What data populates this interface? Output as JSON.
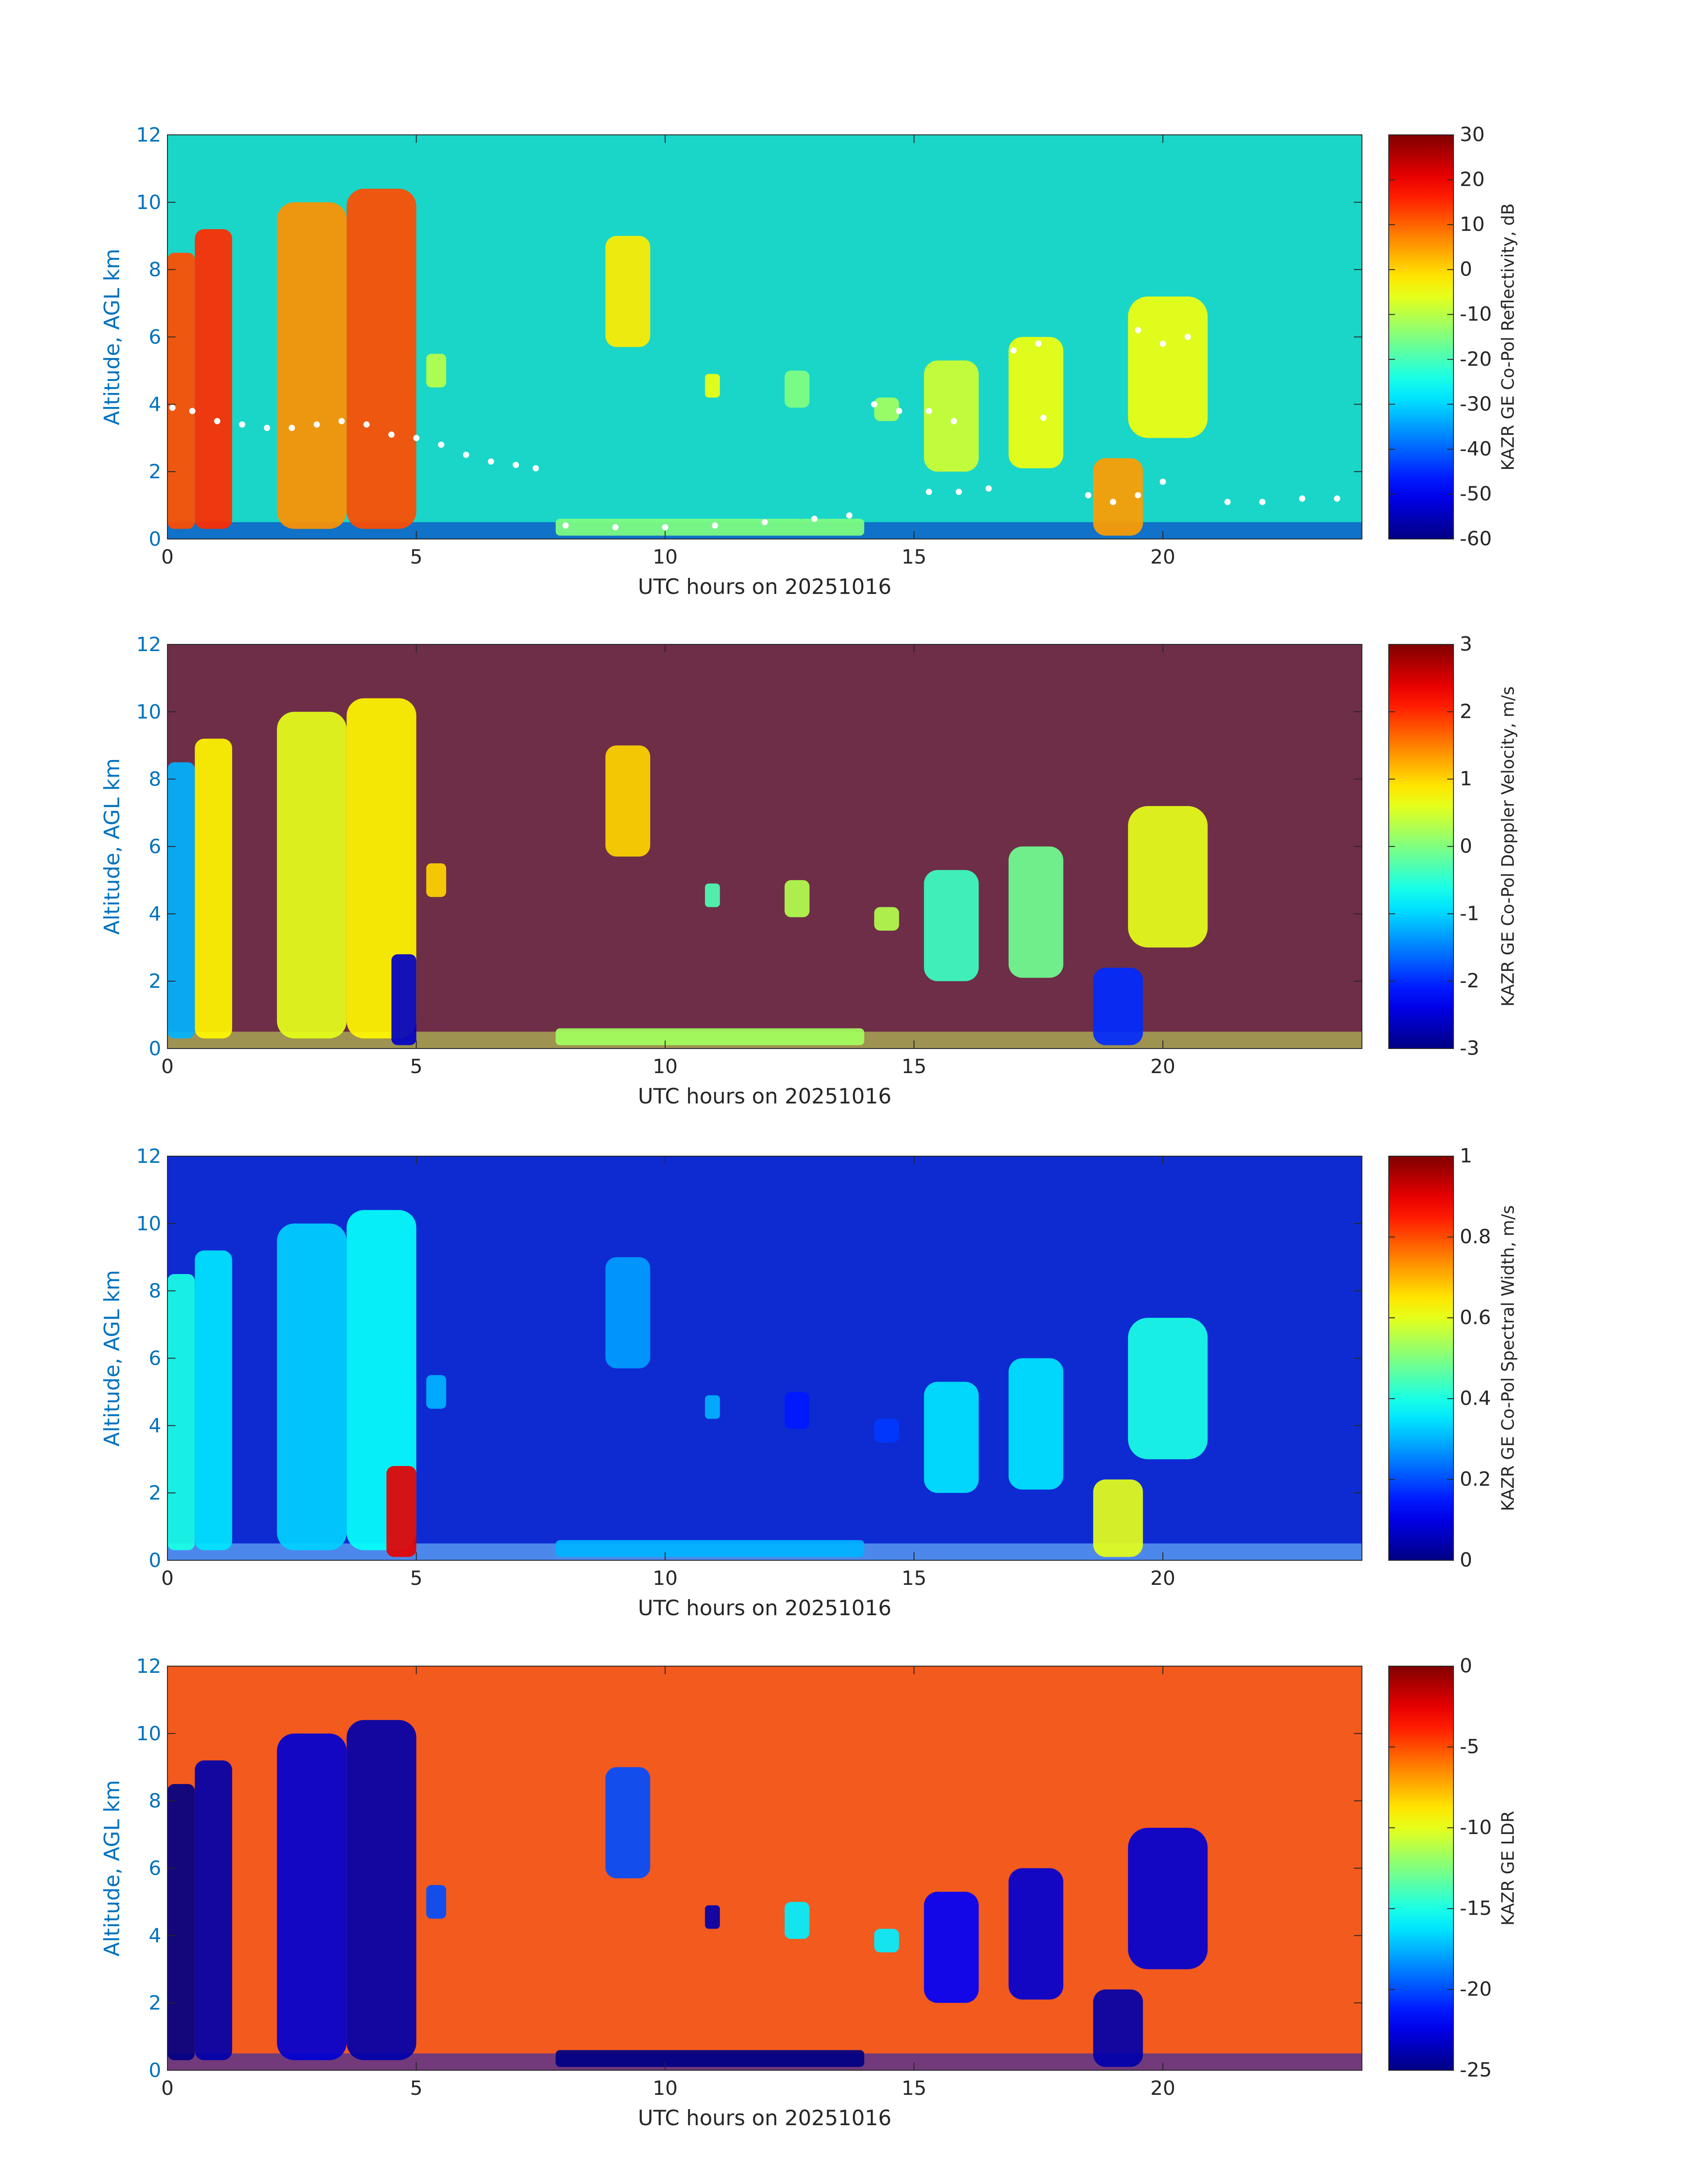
{
  "chart_data": [
    {
      "type": "heatmap",
      "title": "",
      "xlabel": "UTC hours on 20251016",
      "ylabel": "Altitude, AGL km",
      "xlim": [
        0,
        24
      ],
      "ylim": [
        0,
        12
      ],
      "xticks": [
        0,
        5,
        10,
        15,
        20
      ],
      "yticks": [
        0,
        2,
        4,
        6,
        8,
        10,
        12
      ],
      "colormap": "jet",
      "colorbar": {
        "label": "KAZR GE Co-Pol Reflectivity, dB",
        "range": [
          -60,
          30
        ],
        "ticks": [
          30,
          20,
          10,
          0,
          -10,
          -20,
          -30,
          -40,
          -50,
          -60
        ]
      },
      "background_color": "#19d6c8",
      "surface_color": "#0a20c8",
      "cloud_layers": [
        {
          "x": [
            0.0,
            0.55
          ],
          "y": [
            0.3,
            8.5
          ],
          "value": 12
        },
        {
          "x": [
            0.55,
            1.3
          ],
          "y": [
            0.3,
            9.2
          ],
          "value": 15
        },
        {
          "x": [
            2.2,
            3.6
          ],
          "y": [
            0.3,
            10.0
          ],
          "value": 6
        },
        {
          "x": [
            3.6,
            5.0
          ],
          "y": [
            0.3,
            10.4
          ],
          "value": 12
        },
        {
          "x": [
            5.2,
            5.6
          ],
          "y": [
            4.5,
            5.5
          ],
          "value": -10
        },
        {
          "x": [
            8.8,
            9.7
          ],
          "y": [
            5.7,
            9.0
          ],
          "value": -2
        },
        {
          "x": [
            10.8,
            11.1
          ],
          "y": [
            4.2,
            4.9
          ],
          "value": -5
        },
        {
          "x": [
            12.4,
            12.9
          ],
          "y": [
            3.9,
            5.0
          ],
          "value": -15
        },
        {
          "x": [
            14.2,
            14.7
          ],
          "y": [
            3.5,
            4.2
          ],
          "value": -12
        },
        {
          "x": [
            15.2,
            16.3
          ],
          "y": [
            2.0,
            5.3
          ],
          "value": -8
        },
        {
          "x": [
            16.9,
            18.0
          ],
          "y": [
            2.1,
            6.0
          ],
          "value": -5
        },
        {
          "x": [
            18.6,
            19.6
          ],
          "y": [
            0.1,
            2.4
          ],
          "value": 5
        },
        {
          "x": [
            19.3,
            20.9
          ],
          "y": [
            3.0,
            7.2
          ],
          "value": -5
        },
        {
          "x": [
            7.8,
            14.0
          ],
          "y": [
            0.1,
            0.6
          ],
          "value": -15
        }
      ],
      "cloud_base_points": [
        {
          "x": 0.1,
          "y": 3.9
        },
        {
          "x": 0.5,
          "y": 3.8
        },
        {
          "x": 1.0,
          "y": 3.5
        },
        {
          "x": 1.5,
          "y": 3.4
        },
        {
          "x": 2.0,
          "y": 3.3
        },
        {
          "x": 2.5,
          "y": 3.3
        },
        {
          "x": 3.0,
          "y": 3.4
        },
        {
          "x": 3.5,
          "y": 3.5
        },
        {
          "x": 4.0,
          "y": 3.4
        },
        {
          "x": 4.5,
          "y": 3.1
        },
        {
          "x": 5.0,
          "y": 3.0
        },
        {
          "x": 5.5,
          "y": 2.8
        },
        {
          "x": 6.0,
          "y": 2.5
        },
        {
          "x": 6.5,
          "y": 2.3
        },
        {
          "x": 7.0,
          "y": 2.2
        },
        {
          "x": 7.4,
          "y": 2.1
        },
        {
          "x": 8.0,
          "y": 0.4
        },
        {
          "x": 9.0,
          "y": 0.35
        },
        {
          "x": 10.0,
          "y": 0.35
        },
        {
          "x": 11.0,
          "y": 0.4
        },
        {
          "x": 12.0,
          "y": 0.5
        },
        {
          "x": 13.0,
          "y": 0.6
        },
        {
          "x": 13.7,
          "y": 0.7
        },
        {
          "x": 14.2,
          "y": 4.0
        },
        {
          "x": 14.7,
          "y": 3.8
        },
        {
          "x": 15.3,
          "y": 3.8
        },
        {
          "x": 15.8,
          "y": 3.5
        },
        {
          "x": 15.3,
          "y": 1.4
        },
        {
          "x": 15.9,
          "y": 1.4
        },
        {
          "x": 16.5,
          "y": 1.5
        },
        {
          "x": 17.0,
          "y": 5.6
        },
        {
          "x": 17.5,
          "y": 5.8
        },
        {
          "x": 17.6,
          "y": 3.6
        },
        {
          "x": 18.5,
          "y": 1.3
        },
        {
          "x": 19.0,
          "y": 1.1
        },
        {
          "x": 19.5,
          "y": 1.3
        },
        {
          "x": 20.0,
          "y": 1.7
        },
        {
          "x": 19.5,
          "y": 6.2
        },
        {
          "x": 20.0,
          "y": 5.8
        },
        {
          "x": 20.5,
          "y": 6.0
        },
        {
          "x": 21.3,
          "y": 1.1
        },
        {
          "x": 22.0,
          "y": 1.1
        },
        {
          "x": 22.8,
          "y": 1.2
        },
        {
          "x": 23.5,
          "y": 1.2
        }
      ]
    },
    {
      "type": "heatmap",
      "title": "",
      "xlabel": "UTC hours on 20251016",
      "ylabel": "Altitude, AGL km",
      "xlim": [
        0,
        24
      ],
      "ylim": [
        0,
        12
      ],
      "xticks": [
        0,
        5,
        10,
        15,
        20
      ],
      "yticks": [
        0,
        2,
        4,
        6,
        8,
        10,
        12
      ],
      "colormap": "jet",
      "colorbar": {
        "label": "KAZR GE Co-Pol Doppler Velocity, m/s",
        "range": [
          -3,
          3
        ],
        "ticks": [
          3,
          2,
          1,
          0,
          -1,
          -2,
          -3
        ]
      },
      "background_color": "#6e2e48",
      "surface_color": "#c8e85a",
      "cloud_layers": [
        {
          "x": [
            0.0,
            0.55
          ],
          "y": [
            0.3,
            8.5
          ],
          "value": -1.2
        },
        {
          "x": [
            0.55,
            1.3
          ],
          "y": [
            0.3,
            9.2
          ],
          "value": 0.8
        },
        {
          "x": [
            2.2,
            3.6
          ],
          "y": [
            0.3,
            10.0
          ],
          "value": 0.6
        },
        {
          "x": [
            3.6,
            5.0
          ],
          "y": [
            0.3,
            10.4
          ],
          "value": 0.8
        },
        {
          "x": [
            4.5,
            5.0
          ],
          "y": [
            0.1,
            2.8
          ],
          "value": -2.6
        },
        {
          "x": [
            5.2,
            5.6
          ],
          "y": [
            4.5,
            5.5
          ],
          "value": 1.0
        },
        {
          "x": [
            8.8,
            9.7
          ],
          "y": [
            5.7,
            9.0
          ],
          "value": 1.0
        },
        {
          "x": [
            10.8,
            11.1
          ],
          "y": [
            4.2,
            4.9
          ],
          "value": -0.3
        },
        {
          "x": [
            12.4,
            12.9
          ],
          "y": [
            3.9,
            5.0
          ],
          "value": 0.3
        },
        {
          "x": [
            14.2,
            14.7
          ],
          "y": [
            3.5,
            4.2
          ],
          "value": 0.3
        },
        {
          "x": [
            15.2,
            16.3
          ],
          "y": [
            2.0,
            5.3
          ],
          "value": -0.4
        },
        {
          "x": [
            16.9,
            18.0
          ],
          "y": [
            2.1,
            6.0
          ],
          "value": -0.1
        },
        {
          "x": [
            18.6,
            19.6
          ],
          "y": [
            0.1,
            2.4
          ],
          "value": -2.0
        },
        {
          "x": [
            19.3,
            20.9
          ],
          "y": [
            3.0,
            7.2
          ],
          "value": 0.6
        },
        {
          "x": [
            7.8,
            14.0
          ],
          "y": [
            0.1,
            0.6
          ],
          "value": 0.2
        }
      ]
    },
    {
      "type": "heatmap",
      "title": "",
      "xlabel": "UTC hours on 20251016",
      "ylabel": "Altitude, AGL km",
      "xlim": [
        0,
        24
      ],
      "ylim": [
        0,
        12
      ],
      "xticks": [
        0,
        5,
        10,
        15,
        20
      ],
      "yticks": [
        0,
        2,
        4,
        6,
        8,
        10,
        12
      ],
      "colormap": "jet",
      "colorbar": {
        "label": "KAZR GE Co-Pol Spectral Width, m/s",
        "range": [
          0,
          1
        ],
        "ticks": [
          1,
          0.8,
          0.6,
          0.4,
          0.2,
          0
        ]
      },
      "background_color": "#0e2bd2",
      "surface_color": "#7fd6ff",
      "cloud_layers": [
        {
          "x": [
            0.0,
            0.55
          ],
          "y": [
            0.3,
            8.5
          ],
          "value": 0.4
        },
        {
          "x": [
            0.55,
            1.3
          ],
          "y": [
            0.3,
            9.2
          ],
          "value": 0.35
        },
        {
          "x": [
            2.2,
            3.6
          ],
          "y": [
            0.3,
            10.0
          ],
          "value": 0.33
        },
        {
          "x": [
            3.6,
            5.0
          ],
          "y": [
            0.3,
            10.4
          ],
          "value": 0.38
        },
        {
          "x": [
            4.4,
            5.0
          ],
          "y": [
            0.1,
            2.8
          ],
          "value": 0.9
        },
        {
          "x": [
            5.2,
            5.6
          ],
          "y": [
            4.5,
            5.5
          ],
          "value": 0.3
        },
        {
          "x": [
            8.8,
            9.7
          ],
          "y": [
            5.7,
            9.0
          ],
          "value": 0.28
        },
        {
          "x": [
            10.8,
            11.1
          ],
          "y": [
            4.2,
            4.9
          ],
          "value": 0.3
        },
        {
          "x": [
            12.4,
            12.9
          ],
          "y": [
            3.9,
            5.0
          ],
          "value": 0.15
        },
        {
          "x": [
            14.2,
            14.7
          ],
          "y": [
            3.5,
            4.2
          ],
          "value": 0.18
        },
        {
          "x": [
            15.2,
            16.3
          ],
          "y": [
            2.0,
            5.3
          ],
          "value": 0.35
        },
        {
          "x": [
            16.9,
            18.0
          ],
          "y": [
            2.1,
            6.0
          ],
          "value": 0.35
        },
        {
          "x": [
            18.6,
            19.6
          ],
          "y": [
            0.1,
            2.4
          ],
          "value": 0.6
        },
        {
          "x": [
            19.3,
            20.9
          ],
          "y": [
            3.0,
            7.2
          ],
          "value": 0.4
        },
        {
          "x": [
            7.8,
            14.0
          ],
          "y": [
            0.1,
            0.6
          ],
          "value": 0.3
        }
      ]
    },
    {
      "type": "heatmap",
      "title": "",
      "xlabel": "UTC hours on 20251016",
      "ylabel": "Altitude, AGL km",
      "xlim": [
        0,
        24
      ],
      "ylim": [
        0,
        12
      ],
      "xticks": [
        0,
        5,
        10,
        15,
        20
      ],
      "yticks": [
        0,
        2,
        4,
        6,
        8,
        10,
        12
      ],
      "colormap": "jet",
      "colorbar": {
        "label": "KAZR GE LDR",
        "range": [
          -25,
          0
        ],
        "ticks": [
          0,
          -5,
          -10,
          -15,
          -20,
          -25
        ]
      },
      "background_color": "#f25a1e",
      "surface_color": "#0a20c8",
      "cloud_layers": [
        {
          "x": [
            0.0,
            0.55
          ],
          "y": [
            0.3,
            8.5
          ],
          "value": -25
        },
        {
          "x": [
            0.55,
            1.3
          ],
          "y": [
            0.3,
            9.2
          ],
          "value": -24
        },
        {
          "x": [
            2.2,
            3.6
          ],
          "y": [
            0.3,
            10.0
          ],
          "value": -23
        },
        {
          "x": [
            3.6,
            5.0
          ],
          "y": [
            0.3,
            10.4
          ],
          "value": -24
        },
        {
          "x": [
            5.2,
            5.6
          ],
          "y": [
            4.5,
            5.5
          ],
          "value": -20
        },
        {
          "x": [
            8.8,
            9.7
          ],
          "y": [
            5.7,
            9.0
          ],
          "value": -20
        },
        {
          "x": [
            10.8,
            11.1
          ],
          "y": [
            4.2,
            4.9
          ],
          "value": -24
        },
        {
          "x": [
            12.4,
            12.9
          ],
          "y": [
            3.9,
            5.0
          ],
          "value": -16
        },
        {
          "x": [
            14.2,
            14.7
          ],
          "y": [
            3.5,
            4.2
          ],
          "value": -16
        },
        {
          "x": [
            15.2,
            16.3
          ],
          "y": [
            2.0,
            5.3
          ],
          "value": -22
        },
        {
          "x": [
            16.9,
            18.0
          ],
          "y": [
            2.1,
            6.0
          ],
          "value": -23
        },
        {
          "x": [
            18.6,
            19.6
          ],
          "y": [
            0.1,
            2.4
          ],
          "value": -24
        },
        {
          "x": [
            19.3,
            20.9
          ],
          "y": [
            3.0,
            7.2
          ],
          "value": -23
        },
        {
          "x": [
            7.8,
            14.0
          ],
          "y": [
            0.1,
            0.6
          ],
          "value": -25
        }
      ]
    }
  ]
}
